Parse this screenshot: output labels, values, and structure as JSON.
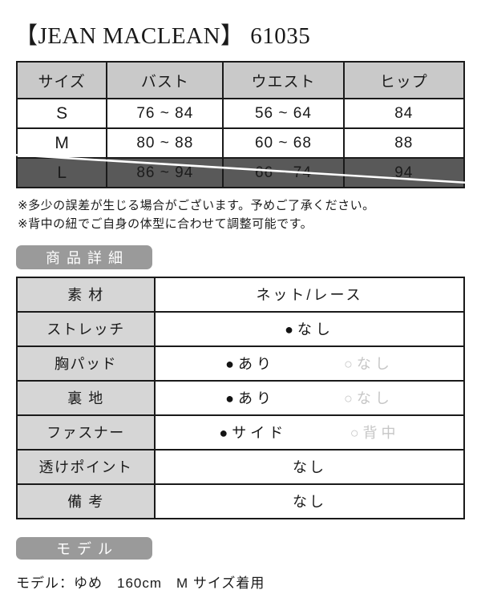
{
  "page": {
    "title": "【JEAN MACLEAN】 61035"
  },
  "size_table": {
    "headers": [
      "サイズ",
      "バスト",
      "ウエスト",
      "ヒップ"
    ],
    "rows": [
      {
        "size": "S",
        "bust": "76 ~ 84",
        "waist": "56 ~ 64",
        "hip": "84",
        "sold_out": false
      },
      {
        "size": "M",
        "bust": "80 ~ 88",
        "waist": "60 ~ 68",
        "hip": "88",
        "sold_out": false
      },
      {
        "size": "L",
        "bust": "86 ~ 94",
        "waist": "66 ~ 74",
        "hip": "94",
        "sold_out": true
      }
    ]
  },
  "notes": [
    "※多少の誤差が生じる場合がございます。予めご了承ください。",
    "※背中の紐でご自身の体型に合わせて調整可能です。"
  ],
  "sections": {
    "details_label": "商品詳細",
    "model_label": "モデル"
  },
  "details_table": {
    "rows": [
      {
        "label": "素 材",
        "type": "text",
        "value": "ネット/レース"
      },
      {
        "label": "ストレッチ",
        "type": "single_option",
        "value": "なし"
      },
      {
        "label": "胸パッド",
        "type": "options",
        "selected": "あり",
        "unselected": "なし"
      },
      {
        "label": "裏 地",
        "type": "options",
        "selected": "あり",
        "unselected": "なし"
      },
      {
        "label": "ファスナー",
        "type": "options",
        "selected": "サイド",
        "unselected": "背中"
      },
      {
        "label": "透けポイント",
        "type": "text",
        "value": "なし"
      },
      {
        "label": "備 考",
        "type": "text",
        "value": "なし"
      }
    ]
  },
  "model": {
    "description": "モデル：ゆめ　160cm　M サイズ着用"
  },
  "icons": {
    "selected_marker": "●",
    "unselected_marker": "○"
  },
  "colors": {
    "table_header_bg": "#c9c9c9",
    "label_cell_bg": "#d6d6d6",
    "sold_out_bg": "#595959",
    "badge_bg": "#9a9a9a",
    "border": "#1a1a1a",
    "unselected_text": "#c6c6c6",
    "strike_line": "#ffffff"
  }
}
